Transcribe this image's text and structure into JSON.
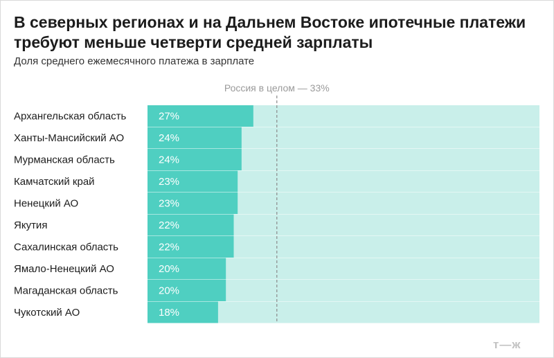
{
  "header": {
    "title": "В северных регионах и на Дальнем Востоке ипотечные платежи требуют меньше четверти средней зарплаты",
    "subtitle": "Доля среднего ежемесячного платежа в зарплате"
  },
  "logo": "т—ж",
  "colors": {
    "bar": "#4fcfc1",
    "track": "#c9efea",
    "reference_line": "#8a8a8a",
    "value_label": "#ffffff"
  },
  "chart_data": {
    "type": "bar",
    "orientation": "horizontal",
    "categories": [
      "Архангельская область",
      "Ханты-Мансийский АО",
      "Мурманская область",
      "Камчатский край",
      "Ненецкий АО",
      "Якутия",
      "Сахалинская область",
      "Ямало-Ненецкий АО",
      "Магаданская область",
      "Чукотский АО"
    ],
    "values": [
      27,
      24,
      24,
      23,
      23,
      22,
      22,
      20,
      20,
      18
    ],
    "value_labels": [
      "27%",
      "24%",
      "24%",
      "23%",
      "23%",
      "22%",
      "22%",
      "20%",
      "20%",
      "18%"
    ],
    "unit": "%",
    "xlim": [
      0,
      100
    ],
    "reference": {
      "value": 33,
      "label": "Россия в целом — 33%"
    },
    "grid": false,
    "legend": "none"
  }
}
